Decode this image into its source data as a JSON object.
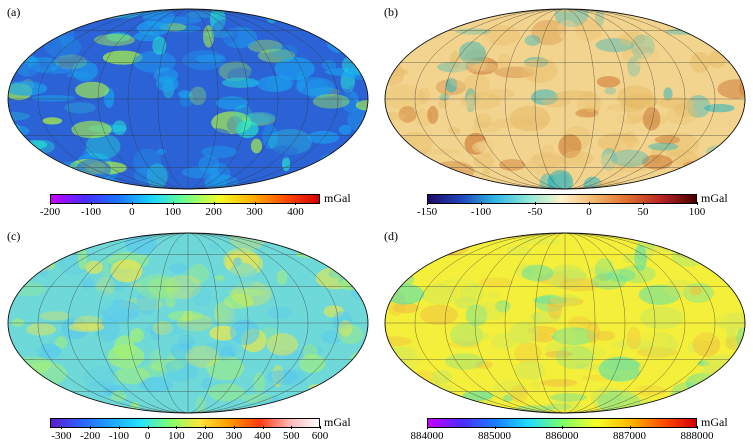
{
  "unit": "mGal",
  "panels": [
    {
      "label": "(a)",
      "colorbar": {
        "min": -200,
        "max": 460,
        "ticks": [
          "-200",
          "-100",
          "0",
          "100",
          "200",
          "300",
          "400"
        ],
        "tick_values": [
          -200,
          -100,
          0,
          100,
          200,
          300,
          400
        ],
        "colors": [
          "#c800ff",
          "#4b2bff",
          "#1a73ff",
          "#19d4ff",
          "#6cff8a",
          "#f0ff2a",
          "#ffb000",
          "#ff4b00",
          "#d40000"
        ]
      },
      "map_palette": {
        "base": "#2b63d7",
        "mid": "#1aa6f0",
        "hi": "#25e7d2",
        "peak": "#b6ff3b"
      }
    },
    {
      "label": "(b)",
      "colorbar": {
        "min": -150,
        "max": 100,
        "ticks": [
          "-150",
          "-100",
          "-50",
          "0",
          "50",
          "100"
        ],
        "tick_values": [
          -150,
          -100,
          -50,
          0,
          50,
          100
        ],
        "colors": [
          "#1d0a69",
          "#2046b9",
          "#2fb6e3",
          "#8ee7d8",
          "#fff2c9",
          "#f1b36a",
          "#de6a2b",
          "#b32323",
          "#4a0000"
        ]
      },
      "map_palette": {
        "base": "#f3d48e",
        "mid": "#e7bc6a",
        "hi": "#c9722e",
        "peak": "#2bb5c0"
      }
    },
    {
      "label": "(c)",
      "colorbar": {
        "min": -340,
        "max": 600,
        "ticks": [
          "-300",
          "-200",
          "-100",
          "0",
          "100",
          "200",
          "300",
          "400",
          "500",
          "600"
        ],
        "tick_values": [
          -300,
          -200,
          -100,
          0,
          100,
          200,
          300,
          400,
          500,
          600
        ],
        "colors": [
          "#5c1cc9",
          "#2c60ff",
          "#1ca4ff",
          "#26e3ff",
          "#7fff70",
          "#ffe53a",
          "#ff9a00",
          "#ff3a10",
          "#ffb5b5",
          "#ffffff"
        ]
      },
      "map_palette": {
        "base": "#6ed9d8",
        "mid": "#57c8f0",
        "hi": "#a9f26e",
        "peak": "#f7e83f"
      }
    },
    {
      "label": "(d)",
      "colorbar": {
        "min": 884000,
        "max": 888000,
        "ticks": [
          "884000",
          "885000",
          "886000",
          "887000",
          "888000"
        ],
        "tick_values": [
          884000,
          885000,
          886000,
          887000,
          888000
        ],
        "colors": [
          "#c800ff",
          "#4d2bff",
          "#1a7dff",
          "#20ddff",
          "#7dff6a",
          "#f4ff2a",
          "#ffbc00",
          "#ff5000",
          "#d40000"
        ]
      },
      "map_palette": {
        "base": "#f4ef3a",
        "mid": "#cde85c",
        "hi": "#55e0b0",
        "peak": "#f0c040"
      }
    }
  ]
}
